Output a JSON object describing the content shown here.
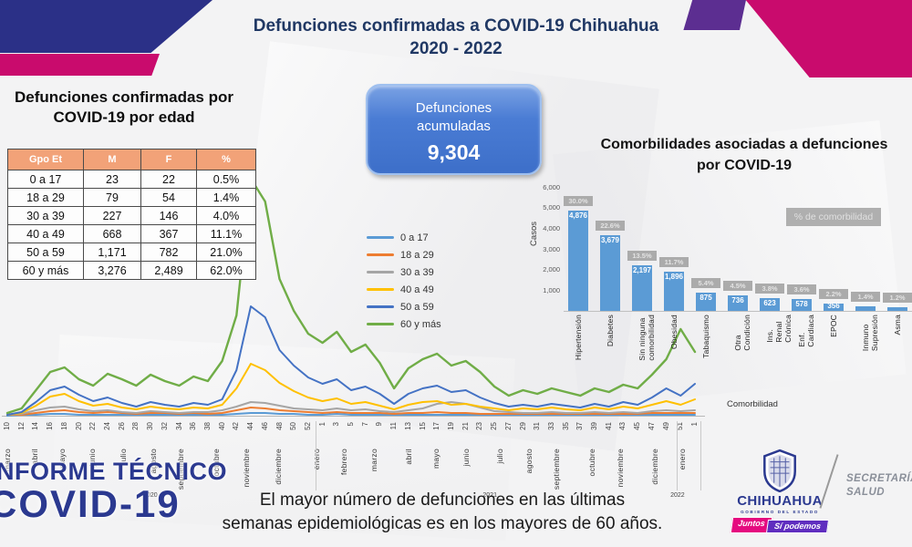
{
  "colors": {
    "header_navy": "#2B3087",
    "header_magenta": "#C90B6D",
    "header_purple": "#5C2E91",
    "title_text": "#203864",
    "table_header_bg": "#F2A278",
    "accumulated_box_blue": "#4A7CD4",
    "bar_blue": "#5B9BD5",
    "badge_gray": "#ABABAB",
    "brand_navy": "#2B3990",
    "brand_pink": "#E5097F",
    "brand_purple": "#5F2DBF"
  },
  "header": {
    "title_line1": "Defunciones confirmadas a COVID-19 Chihuahua",
    "title_line2": "2020 - 2022"
  },
  "accumulated": {
    "label_line1": "Defunciones",
    "label_line2": "acumuladas",
    "value": "9,304"
  },
  "age_table": {
    "title_line1": "Defunciones confirmadas por",
    "title_line2": "COVID-19 por edad",
    "columns": [
      "Gpo Et",
      "M",
      "F",
      "%"
    ],
    "rows": [
      [
        "0 a 17",
        "23",
        "22",
        "0.5%"
      ],
      [
        "18 a 29",
        "79",
        "54",
        "1.4%"
      ],
      [
        "30 a 39",
        "227",
        "146",
        "4.0%"
      ],
      [
        "40 a 49",
        "668",
        "367",
        "11.1%"
      ],
      [
        "50 a 59",
        "1,171",
        "782",
        "21.0%"
      ],
      [
        "60 y más",
        "3,276",
        "2,489",
        "62.0%"
      ]
    ]
  },
  "note": {
    "line1": "El mayor número de defunciones en las últimas",
    "line2": "semanas epidemiológicas es en los mayores de 60 años."
  },
  "informe_badge": {
    "line1": "INFORME TÉCNICO",
    "line2": "COVID-19"
  },
  "footer": {
    "state_name": "CHIHUAHUA",
    "state_sub": "GOBIERNO DEL ESTADO",
    "slogan_part1": "Juntos",
    "slogan_part2": "Sí podemos",
    "secretaria_line1": "SECRETARÍA",
    "secretaria_line2": "SALUD"
  },
  "chart_data": [
    {
      "type": "bar",
      "title_line1": "Comorbilidades asociadas a defunciones",
      "title_line2": "por COVID-19",
      "xlabel": "Comorbilidad",
      "ylabel": "Casos",
      "ylim": [
        0,
        6000
      ],
      "yticks": [
        1000,
        2000,
        3000,
        4000,
        5000,
        6000
      ],
      "ytick_labels": [
        "1,000",
        "2,000",
        "3,000",
        "4,000",
        "5,000",
        "6,000"
      ],
      "legend_label": "% de comorbilidad",
      "bar_color": "#5B9BD5",
      "categories": [
        "Hipertensión",
        "Diabetes",
        "Sin ninguna comorbilidad",
        "Obesidad",
        "Tabaquismo",
        "Otra Condición",
        "Ins. Renal Crónica",
        "Enf. Cardiaca",
        "EPOC",
        "Inmuno Supresión",
        "Asma"
      ],
      "values": [
        4876,
        3679,
        2197,
        1896,
        875,
        736,
        623,
        578,
        356,
        228,
        195
      ],
      "value_labels": [
        "4,876",
        "3,679",
        "2,197",
        "1,896",
        "875",
        "736",
        "623",
        "578",
        "356",
        "",
        ""
      ],
      "percent_labels": [
        "30.0%",
        "22.6%",
        "13.5%",
        "11.7%",
        "5.4%",
        "4.5%",
        "3.8%",
        "3.6%",
        "2.2%",
        "1.4%",
        "1.2%"
      ]
    },
    {
      "type": "line",
      "ylim": [
        0,
        270
      ],
      "x_tick_labels": [
        "10",
        "12",
        "14",
        "16",
        "18",
        "20",
        "22",
        "24",
        "26",
        "28",
        "30",
        "32",
        "34",
        "36",
        "38",
        "40",
        "42",
        "44",
        "46",
        "48",
        "50",
        "52",
        "1",
        "3",
        "5",
        "7",
        "9",
        "11",
        "13",
        "15",
        "17",
        "19",
        "21",
        "23",
        "25",
        "27",
        "29",
        "31",
        "33",
        "35",
        "37",
        "39",
        "41",
        "43",
        "45",
        "47",
        "49",
        "51",
        "1"
      ],
      "months": [
        {
          "label": "marzo",
          "index": 0.0
        },
        {
          "label": "abril",
          "index": 1.9
        },
        {
          "label": "mayo",
          "index": 3.8
        },
        {
          "label": "junio",
          "index": 5.9
        },
        {
          "label": "julio",
          "index": 8.1
        },
        {
          "label": "agosto",
          "index": 10.2
        },
        {
          "label": "septiembre",
          "index": 12.1
        },
        {
          "label": "octubre",
          "index": 14.6
        },
        {
          "label": "noviembre",
          "index": 16.7
        },
        {
          "label": "diciembre",
          "index": 18.9
        },
        {
          "label": "enero",
          "index": 21.6
        },
        {
          "label": "febrero",
          "index": 23.5
        },
        {
          "label": "marzo",
          "index": 25.6
        },
        {
          "label": "abril",
          "index": 28.0
        },
        {
          "label": "mayo",
          "index": 29.9
        },
        {
          "label": "junio",
          "index": 32.0
        },
        {
          "label": "julio",
          "index": 34.4
        },
        {
          "label": "agosto",
          "index": 36.4
        },
        {
          "label": "septiembre",
          "index": 38.3
        },
        {
          "label": "octubre",
          "index": 40.8
        },
        {
          "label": "noviembre",
          "index": 42.8
        },
        {
          "label": "diciembre",
          "index": 45.2
        },
        {
          "label": "enero",
          "index": 47.1
        }
      ],
      "year_labels": [
        {
          "label": "2020",
          "index": 10.0
        },
        {
          "label": "2021",
          "index": 33.7
        },
        {
          "label": "2022",
          "index": 46.8
        }
      ],
      "separators": [
        21.5,
        46.7,
        48.4
      ],
      "series": [
        {
          "name": "0 a 17",
          "color": "#5B9BD5",
          "values": [
            0,
            1,
            1,
            2,
            2,
            1,
            1,
            1,
            1,
            1,
            1,
            1,
            1,
            1,
            1,
            1,
            2,
            3,
            3,
            2,
            2,
            1,
            1,
            2,
            1,
            1,
            1,
            1,
            1,
            1,
            1,
            1,
            1,
            1,
            1,
            1,
            1,
            1,
            1,
            1,
            1,
            1,
            1,
            1,
            1,
            1,
            1,
            1,
            1
          ]
        },
        {
          "name": "18 a 29",
          "color": "#ED7D31",
          "values": [
            1,
            1,
            3,
            5,
            6,
            4,
            3,
            4,
            3,
            2,
            3,
            3,
            2,
            3,
            2,
            3,
            6,
            9,
            8,
            6,
            5,
            4,
            3,
            4,
            3,
            3,
            3,
            2,
            3,
            3,
            4,
            3,
            3,
            2,
            2,
            2,
            2,
            2,
            2,
            2,
            2,
            2,
            2,
            2,
            2,
            3,
            3,
            3,
            3
          ]
        },
        {
          "name": "30 a 39",
          "color": "#A5A5A5",
          "values": [
            1,
            2,
            6,
            9,
            10,
            7,
            5,
            6,
            4,
            3,
            5,
            4,
            3,
            4,
            4,
            6,
            10,
            15,
            14,
            11,
            8,
            7,
            6,
            8,
            6,
            7,
            5,
            4,
            6,
            8,
            13,
            15,
            13,
            9,
            5,
            4,
            3,
            3,
            4,
            3,
            3,
            4,
            3,
            4,
            3,
            5,
            6,
            5,
            6
          ]
        },
        {
          "name": "40 a 49",
          "color": "#FFC000",
          "values": [
            1,
            3,
            11,
            21,
            24,
            16,
            11,
            13,
            9,
            7,
            10,
            8,
            7,
            9,
            8,
            12,
            30,
            57,
            50,
            36,
            27,
            20,
            16,
            19,
            13,
            15,
            11,
            7,
            12,
            15,
            16,
            12,
            13,
            10,
            8,
            6,
            8,
            7,
            9,
            7,
            6,
            9,
            7,
            10,
            8,
            12,
            16,
            12,
            18
          ]
        },
        {
          "name": "50 a 59",
          "color": "#4472C4",
          "values": [
            1,
            4,
            15,
            28,
            32,
            23,
            16,
            20,
            14,
            10,
            15,
            12,
            10,
            14,
            12,
            18,
            50,
            120,
            108,
            72,
            55,
            42,
            35,
            40,
            28,
            32,
            24,
            13,
            24,
            30,
            33,
            26,
            28,
            20,
            14,
            10,
            12,
            10,
            13,
            11,
            9,
            13,
            10,
            15,
            12,
            20,
            30,
            22,
            35
          ]
        },
        {
          "name": "60 y más",
          "color": "#70AD47",
          "values": [
            3,
            8,
            28,
            48,
            53,
            40,
            33,
            46,
            40,
            33,
            45,
            38,
            33,
            43,
            38,
            60,
            110,
            260,
            235,
            150,
            115,
            90,
            80,
            92,
            70,
            78,
            58,
            30,
            52,
            62,
            68,
            55,
            60,
            48,
            32,
            22,
            28,
            24,
            30,
            26,
            22,
            30,
            26,
            34,
            30,
            45,
            62,
            95,
            70
          ]
        }
      ]
    }
  ]
}
